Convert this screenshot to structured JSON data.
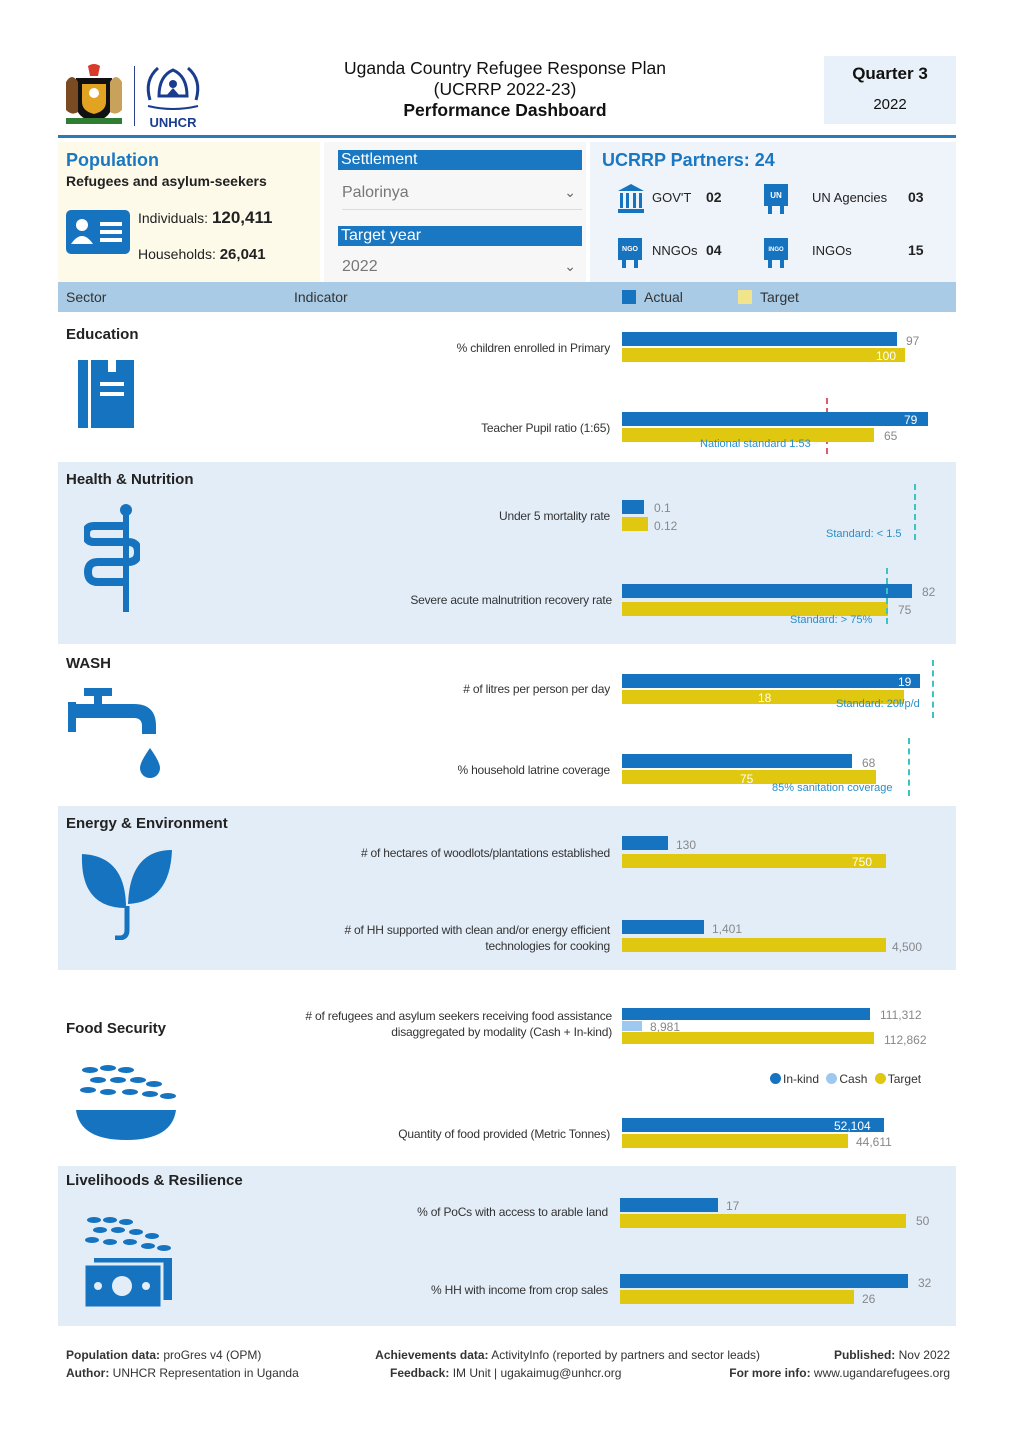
{
  "header": {
    "title_line1": "Uganda Country Refugee Response Plan",
    "title_line2": "(UCRRP 2022-23)",
    "title_line3": "Performance Dashboard",
    "unhcr_logo_text": "UNHCR",
    "quarter": "Quarter 3",
    "year": "2022"
  },
  "population": {
    "title": "Population",
    "subtitle": "Refugees and asylum-seekers",
    "individuals_label": "Individuals:",
    "individuals_value": "120,411",
    "households_label": "Households:",
    "households_value": "26,041"
  },
  "filters": {
    "settlement_label": "Settlement",
    "settlement_value": "Palorinya",
    "target_year_label": "Target year",
    "target_year_value": "2022"
  },
  "partners": {
    "title": "UCRRP Partners:",
    "total": "24",
    "govt_label": "GOV'T",
    "govt_value": "02",
    "un_label": "UN Agencies",
    "un_value": "03",
    "nngo_label": "NNGOs",
    "nngo_value": "04",
    "ingo_label": "INGOs",
    "ingo_value": "15",
    "icon_text_un": "UN",
    "icon_text_ngo": "NGO",
    "icon_text_ingo": "INGO"
  },
  "table_header": {
    "sector": "Sector",
    "indicator": "Indicator",
    "actual": "Actual",
    "target": "Target"
  },
  "colors": {
    "actual": "#1673c0",
    "target": "#dfc80f",
    "cash": "#9ec8f0",
    "accent": "#1a78c2"
  },
  "sectors": {
    "education": {
      "title": "Education",
      "ind1": "% children enrolled in Primary",
      "ind1_actual": "97",
      "ind1_target": "100",
      "ind2": "Teacher Pupil ratio (1:65)",
      "ind2_actual": "79",
      "ind2_target": "65",
      "ind2_standard": "National standard 1:53"
    },
    "health": {
      "title": "Health & Nutrition",
      "ind1": "Under 5 mortality rate",
      "ind1_actual": "0.1",
      "ind1_target": "0.12",
      "ind1_standard": "Standard: < 1.5",
      "ind2": "Severe acute malnutrition recovery rate",
      "ind2_actual": "82",
      "ind2_target": "75",
      "ind2_standard": "Standard: > 75%"
    },
    "wash": {
      "title": "WASH",
      "ind1": "# of litres per person per day",
      "ind1_actual": "19",
      "ind1_target": "18",
      "ind1_standard": "Standard: 20l/p/d",
      "ind2": "% household latrine coverage",
      "ind2_actual": "68",
      "ind2_target": "75",
      "ind2_standard": "85% sanitation coverage"
    },
    "energy": {
      "title": "Energy & Environment",
      "ind1": "# of hectares of woodlots/plantations established",
      "ind1_actual": "130",
      "ind1_target": "750",
      "ind2_line1": "# of HH supported with clean and/or energy efficient",
      "ind2_line2": "technologies for cooking",
      "ind2_actual": "1,401",
      "ind2_target": "4,500"
    },
    "food": {
      "title": "Food Security",
      "ind1_line1": "# of refugees and asylum seekers receiving food assistance",
      "ind1_line2": "disaggregated by modality (Cash + In-kind)",
      "ind1_inkind": "111,312",
      "ind1_cash": "8,981",
      "ind1_target": "112,862",
      "legend_inkind": "In-kind",
      "legend_cash": "Cash",
      "legend_target": "Target",
      "ind2": "Quantity of food provided (Metric Tonnes)",
      "ind2_actual": "52,104",
      "ind2_target": "44,611"
    },
    "livelihoods": {
      "title": "Livelihoods & Resilience",
      "ind1": "% of PoCs with access to arable land",
      "ind1_actual": "17",
      "ind1_target": "50",
      "ind2": "% HH with income from crop sales",
      "ind2_actual": "32",
      "ind2_target": "26"
    }
  },
  "footer": {
    "pop_label": "Population data:",
    "pop_value": "proGres v4 (OPM)",
    "author_label": "Author:",
    "author_value": "UNHCR Representation in Uganda",
    "ach_label": "Achievements data:",
    "ach_value": "ActivityInfo (reported by partners and sector leads)",
    "fb_label": "Feedback:",
    "fb_value": "IM Unit | ugakaimug@unhcr.org",
    "pub_label": "Published:",
    "pub_value": "Nov 2022",
    "more_label": "For more info:",
    "more_value": "www.ugandarefugees.org"
  }
}
